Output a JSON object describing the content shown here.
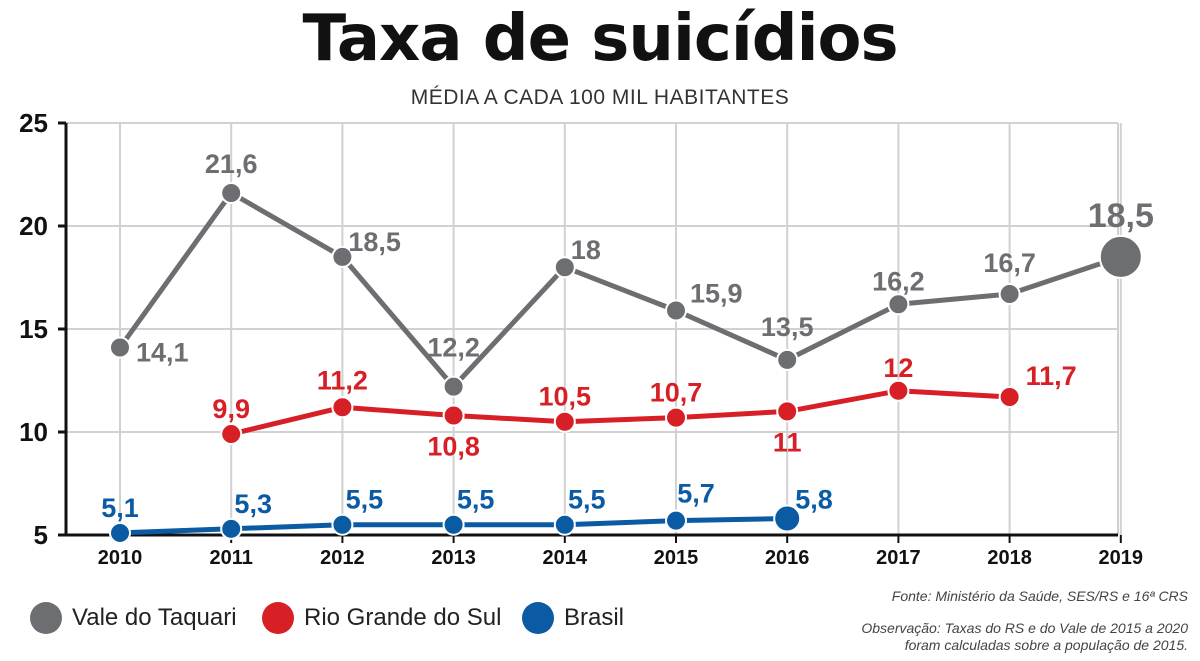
{
  "title": "Taxa de suicídios",
  "subtitle": "MÉDIA A CADA 100 MIL HABITANTES",
  "source": "Fonte: Ministério da Saúde, SES/RS e 16ª CRS",
  "note_line1": "Observação: Taxas do RS e do Vale de 2015 a 2020",
  "note_line2": "foram calculadas sobre a população de 2015.",
  "chart_data": {
    "type": "line",
    "x": [
      "2010",
      "2011",
      "2012",
      "2013",
      "2014",
      "2015",
      "2016",
      "2017",
      "2018",
      "2019"
    ],
    "ylim": [
      5,
      25
    ],
    "yticks": [
      5,
      10,
      15,
      20,
      25
    ],
    "grid": true,
    "legend_placement": "bottom-left",
    "series": [
      {
        "name": "Vale do Taquari",
        "color": "#6d6e71",
        "values": [
          14.1,
          21.6,
          18.5,
          12.2,
          18,
          15.9,
          13.5,
          16.2,
          16.7,
          18.5
        ],
        "labels": [
          "14,1",
          "21,6",
          "18,5",
          "12,2",
          "18",
          "15,9",
          "13,5",
          "16,2",
          "16,7",
          "18,5"
        ]
      },
      {
        "name": "Rio Grande do Sul",
        "color": "#d71f26",
        "values": [
          null,
          9.9,
          11.2,
          10.8,
          10.5,
          10.7,
          11,
          12,
          11.7,
          null
        ],
        "labels": [
          null,
          "9,9",
          "11,2",
          "10,8",
          "10,5",
          "10,7",
          "11",
          "12",
          "11,7",
          null
        ]
      },
      {
        "name": "Brasil",
        "color": "#0a5ba3",
        "values": [
          5.1,
          5.3,
          5.5,
          5.5,
          5.5,
          5.7,
          5.8,
          null,
          null,
          null
        ],
        "labels": [
          "5,1",
          "5,3",
          "5,5",
          "5,5",
          "5,5",
          "5,7",
          "5,8",
          null,
          null,
          null
        ]
      }
    ]
  }
}
